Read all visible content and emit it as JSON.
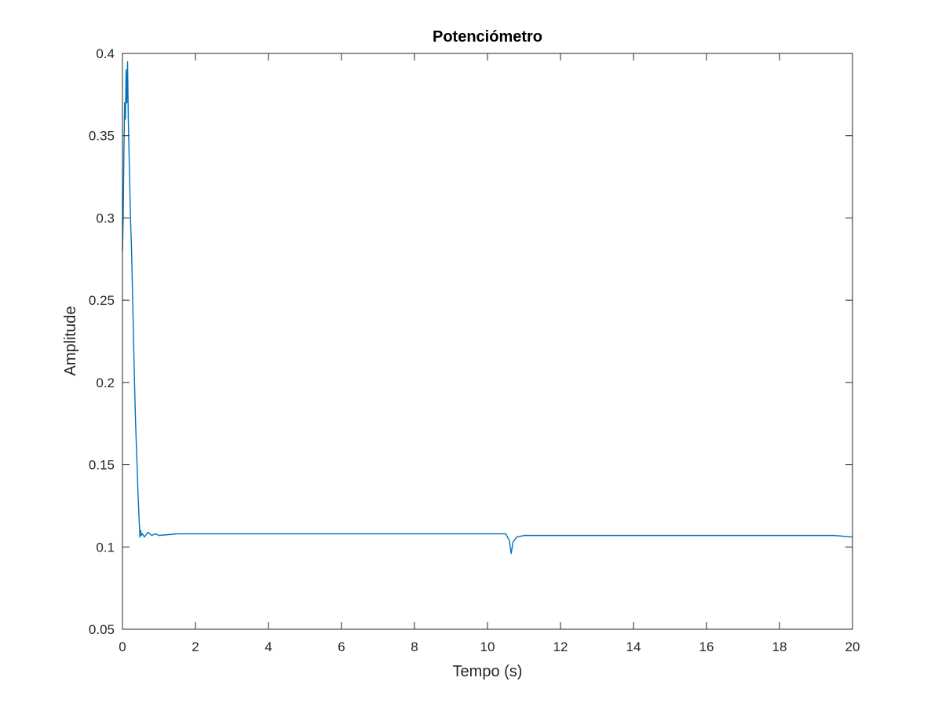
{
  "chart_data": {
    "type": "line",
    "title": "Potenciómetro",
    "xlabel": "Tempo (s)",
    "ylabel": "Amplitude",
    "xlim": [
      0,
      20
    ],
    "ylim": [
      0.05,
      0.4
    ],
    "xticks": [
      0,
      2,
      4,
      6,
      8,
      10,
      12,
      14,
      16,
      18,
      20
    ],
    "yticks": [
      0.05,
      0.1,
      0.15,
      0.2,
      0.25,
      0.3,
      0.35,
      0.4
    ],
    "xtick_labels": [
      "0",
      "2",
      "4",
      "6",
      "8",
      "10",
      "12",
      "14",
      "16",
      "18",
      "20"
    ],
    "ytick_labels": [
      "0.05",
      "0.1",
      "0.15",
      "0.2",
      "0.25",
      "0.3",
      "0.35",
      "0.4"
    ],
    "grid": false,
    "line_color": "#0072BD",
    "series": [
      {
        "x": [
          0,
          0.02,
          0.04,
          0.06,
          0.08,
          0.1,
          0.12,
          0.14,
          0.16,
          0.18,
          0.2,
          0.22,
          0.25,
          0.28,
          0.3,
          0.33,
          0.36,
          0.4,
          0.43,
          0.46,
          0.48,
          0.5,
          0.52,
          0.55,
          0.6,
          0.7,
          0.8,
          0.9,
          1.0,
          1.5,
          2.0,
          3.0,
          4.0,
          5.0,
          6.0,
          7.0,
          8.0,
          9.0,
          10.0,
          10.5,
          10.6,
          10.65,
          10.7,
          10.8,
          11.0,
          12.0,
          13.0,
          14.0,
          15.0,
          16.0,
          17.0,
          18.0,
          19.0,
          19.5,
          20.0
        ],
        "y": [
          0.28,
          0.3,
          0.34,
          0.37,
          0.36,
          0.39,
          0.37,
          0.395,
          0.36,
          0.34,
          0.32,
          0.3,
          0.28,
          0.25,
          0.23,
          0.2,
          0.175,
          0.15,
          0.13,
          0.115,
          0.106,
          0.11,
          0.107,
          0.108,
          0.106,
          0.109,
          0.107,
          0.108,
          0.107,
          0.108,
          0.108,
          0.108,
          0.108,
          0.108,
          0.108,
          0.108,
          0.108,
          0.108,
          0.108,
          0.108,
          0.104,
          0.096,
          0.103,
          0.106,
          0.107,
          0.107,
          0.107,
          0.107,
          0.107,
          0.107,
          0.107,
          0.107,
          0.107,
          0.107,
          0.106
        ]
      }
    ]
  }
}
